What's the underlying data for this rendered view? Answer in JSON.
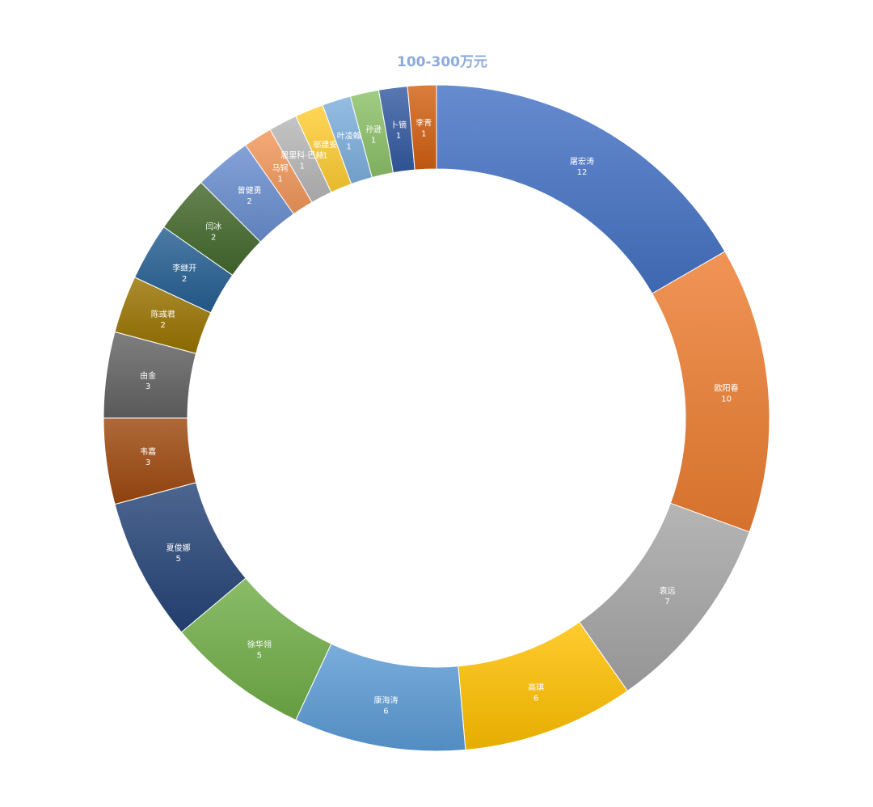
{
  "chart_data": {
    "type": "pie",
    "variant": "donut",
    "title": "100-300万元",
    "legend": "none",
    "data_labels": "category-name-and-value",
    "categories": [
      "屠宏涛",
      "欧阳春",
      "袁远",
      "高琪",
      "康海涛",
      "徐华翎",
      "夏俊娜",
      "韦嘉",
      "由金",
      "陈彧君",
      "李继开",
      "闫冰",
      "曾健勇",
      "马轲",
      "恩里科·巴赫",
      "邬建安",
      "叶凌翰",
      "孙逊",
      "卜镝",
      "李青"
    ],
    "values": [
      12,
      10,
      7,
      6,
      6,
      5,
      5,
      3,
      3,
      2,
      2,
      2,
      2,
      1,
      1,
      1,
      1,
      1,
      1,
      1
    ],
    "colors": [
      "#4472c4",
      "#ed7d31",
      "#a5a5a5",
      "#ffc000",
      "#5b9bd5",
      "#70ad47",
      "#264478",
      "#9e480e",
      "#636363",
      "#997300",
      "#255e91",
      "#43682b",
      "#698ed0",
      "#f1975a",
      "#b7b7b7",
      "#ffcd33",
      "#7cafdd",
      "#8cc168",
      "#335aa1",
      "#d26012"
    ]
  }
}
